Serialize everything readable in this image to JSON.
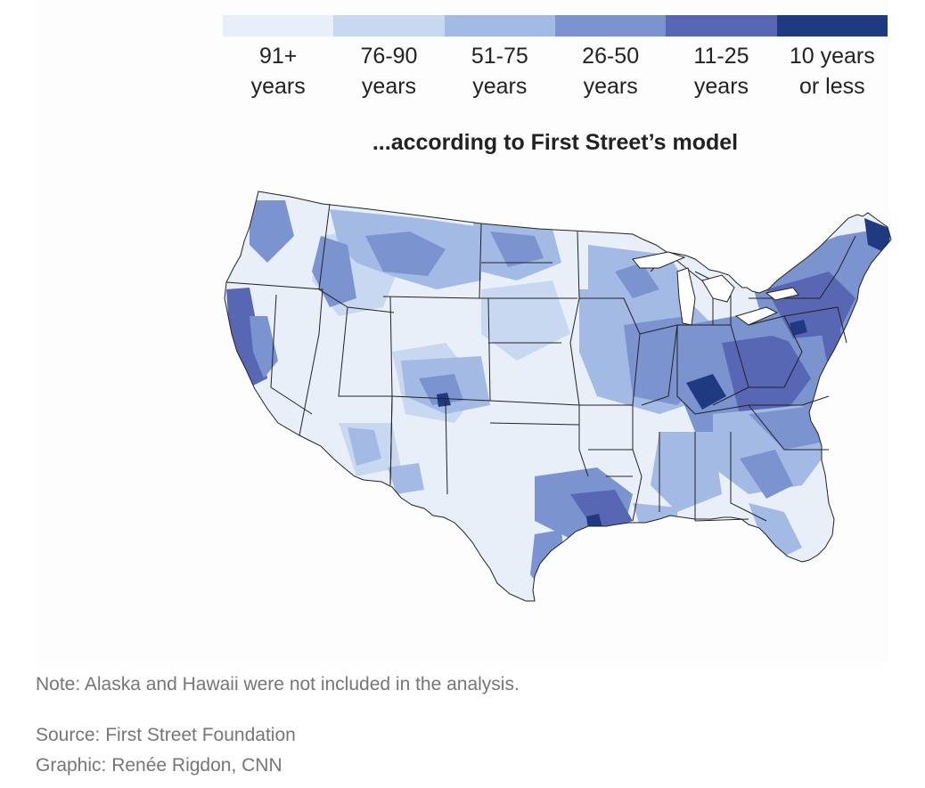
{
  "legend": {
    "items": [
      {
        "line1": "91+",
        "line2": "years",
        "color": "#e8eff9"
      },
      {
        "line1": "76-90",
        "line2": "years",
        "color": "#c7d8f0"
      },
      {
        "line1": "51-75",
        "line2": "years",
        "color": "#a3bae4"
      },
      {
        "line1": "26-50",
        "line2": "years",
        "color": "#7b93cf"
      },
      {
        "line1": "11-25",
        "line2": "years",
        "color": "#5767b3"
      },
      {
        "line1": "10 years",
        "line2": "or less",
        "color": "#1f3a80"
      }
    ]
  },
  "map": {
    "title": "...according to First Street’s model"
  },
  "footer": {
    "note": "Note: Alaska and Hawaii were not included in the analysis.",
    "source": "Source: First Street Foundation",
    "credit": "Graphic: Renée Rigdon, CNN"
  }
}
